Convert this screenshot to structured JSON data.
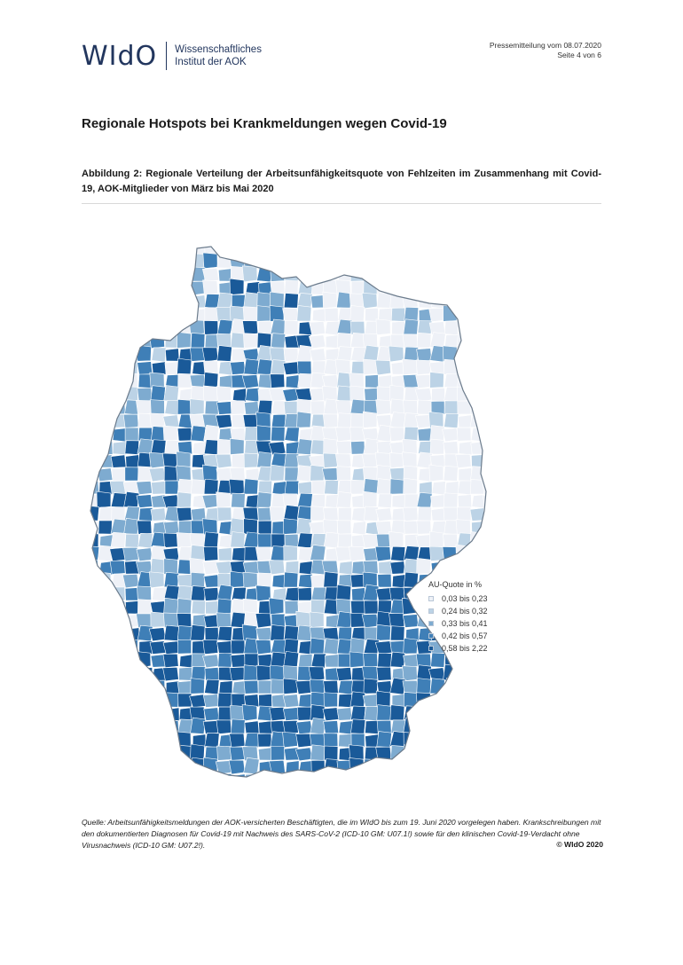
{
  "header": {
    "logo_mark": "WIdO",
    "logo_line1": "Wissenschaftliches",
    "logo_line2": "Institut der AOK",
    "press_line1": "Pressemitteilung vom 08.07.2020",
    "press_line2": "Seite 4 von 6"
  },
  "headline": "Regionale Hotspots bei Krankmeldungen wegen Covid-19",
  "caption": "Abbildung 2: Regionale Verteilung der Arbeitsunfähigkeitsquote von Fehlzeiten im Zusammenhang mit Covid-19, AOK-Mitglieder von März bis Mai 2020",
  "map": {
    "legend_title": "AU-Quote in %",
    "classes": [
      {
        "label": "0,03 bis 0,23",
        "color": "#eef1f7"
      },
      {
        "label": "0,24 bis 0,32",
        "color": "#bcd3e6"
      },
      {
        "label": "0,33 bis 0,41",
        "color": "#7eabd0"
      },
      {
        "label": "0,42 bis 0,57",
        "color": "#3f7fb7"
      },
      {
        "label": "0,58 bis 2,22",
        "color": "#1a5a99"
      }
    ]
  },
  "footer": {
    "source": "Quelle: Arbeitsunfähigkeitsmeldungen der AOK-versicherten Beschäftigten, die im WIdO bis zum 19. Juni 2020 vorgelegen haben. Krankschreibungen mit den dokumentierten Diagnosen für Covid-19 mit Nachweis des SARS-CoV-2 (ICD-10 GM: U07.1!) sowie für den klinischen Covid-19-Verdacht ohne Virusnachweis (ICD-10 GM: U07.2!).",
    "copyright": "© WIdO 2020"
  }
}
